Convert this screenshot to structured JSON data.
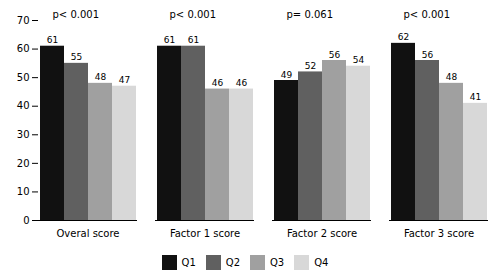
{
  "chart_data": {
    "type": "bar",
    "categories": [
      "Overal score",
      "Factor 1 score",
      "Factor 2 score",
      "Factor 3 score"
    ],
    "series": [
      {
        "name": "Q1",
        "color": "#111111",
        "values": [
          61,
          61,
          49,
          62
        ]
      },
      {
        "name": "Q2",
        "color": "#606060",
        "values": [
          55,
          61,
          52,
          56
        ]
      },
      {
        "name": "Q3",
        "color": "#a0a0a0",
        "values": [
          48,
          46,
          56,
          48
        ]
      },
      {
        "name": "Q4",
        "color": "#d8d8d8",
        "values": [
          47,
          46,
          54,
          41
        ]
      }
    ],
    "annotations": [
      {
        "category": "Overal score",
        "text": "p< 0.001"
      },
      {
        "category": "Factor 1 score",
        "text": "p< 0.001"
      },
      {
        "category": "Factor 2 score",
        "text": "p= 0.061"
      },
      {
        "category": "Factor 3 score",
        "text": "p< 0.001"
      }
    ],
    "ylim": [
      0,
      70
    ],
    "yticks": [
      0,
      10,
      20,
      30,
      40,
      50,
      60,
      70
    ],
    "data_labels": true,
    "grid": false,
    "legend": "bottom"
  }
}
